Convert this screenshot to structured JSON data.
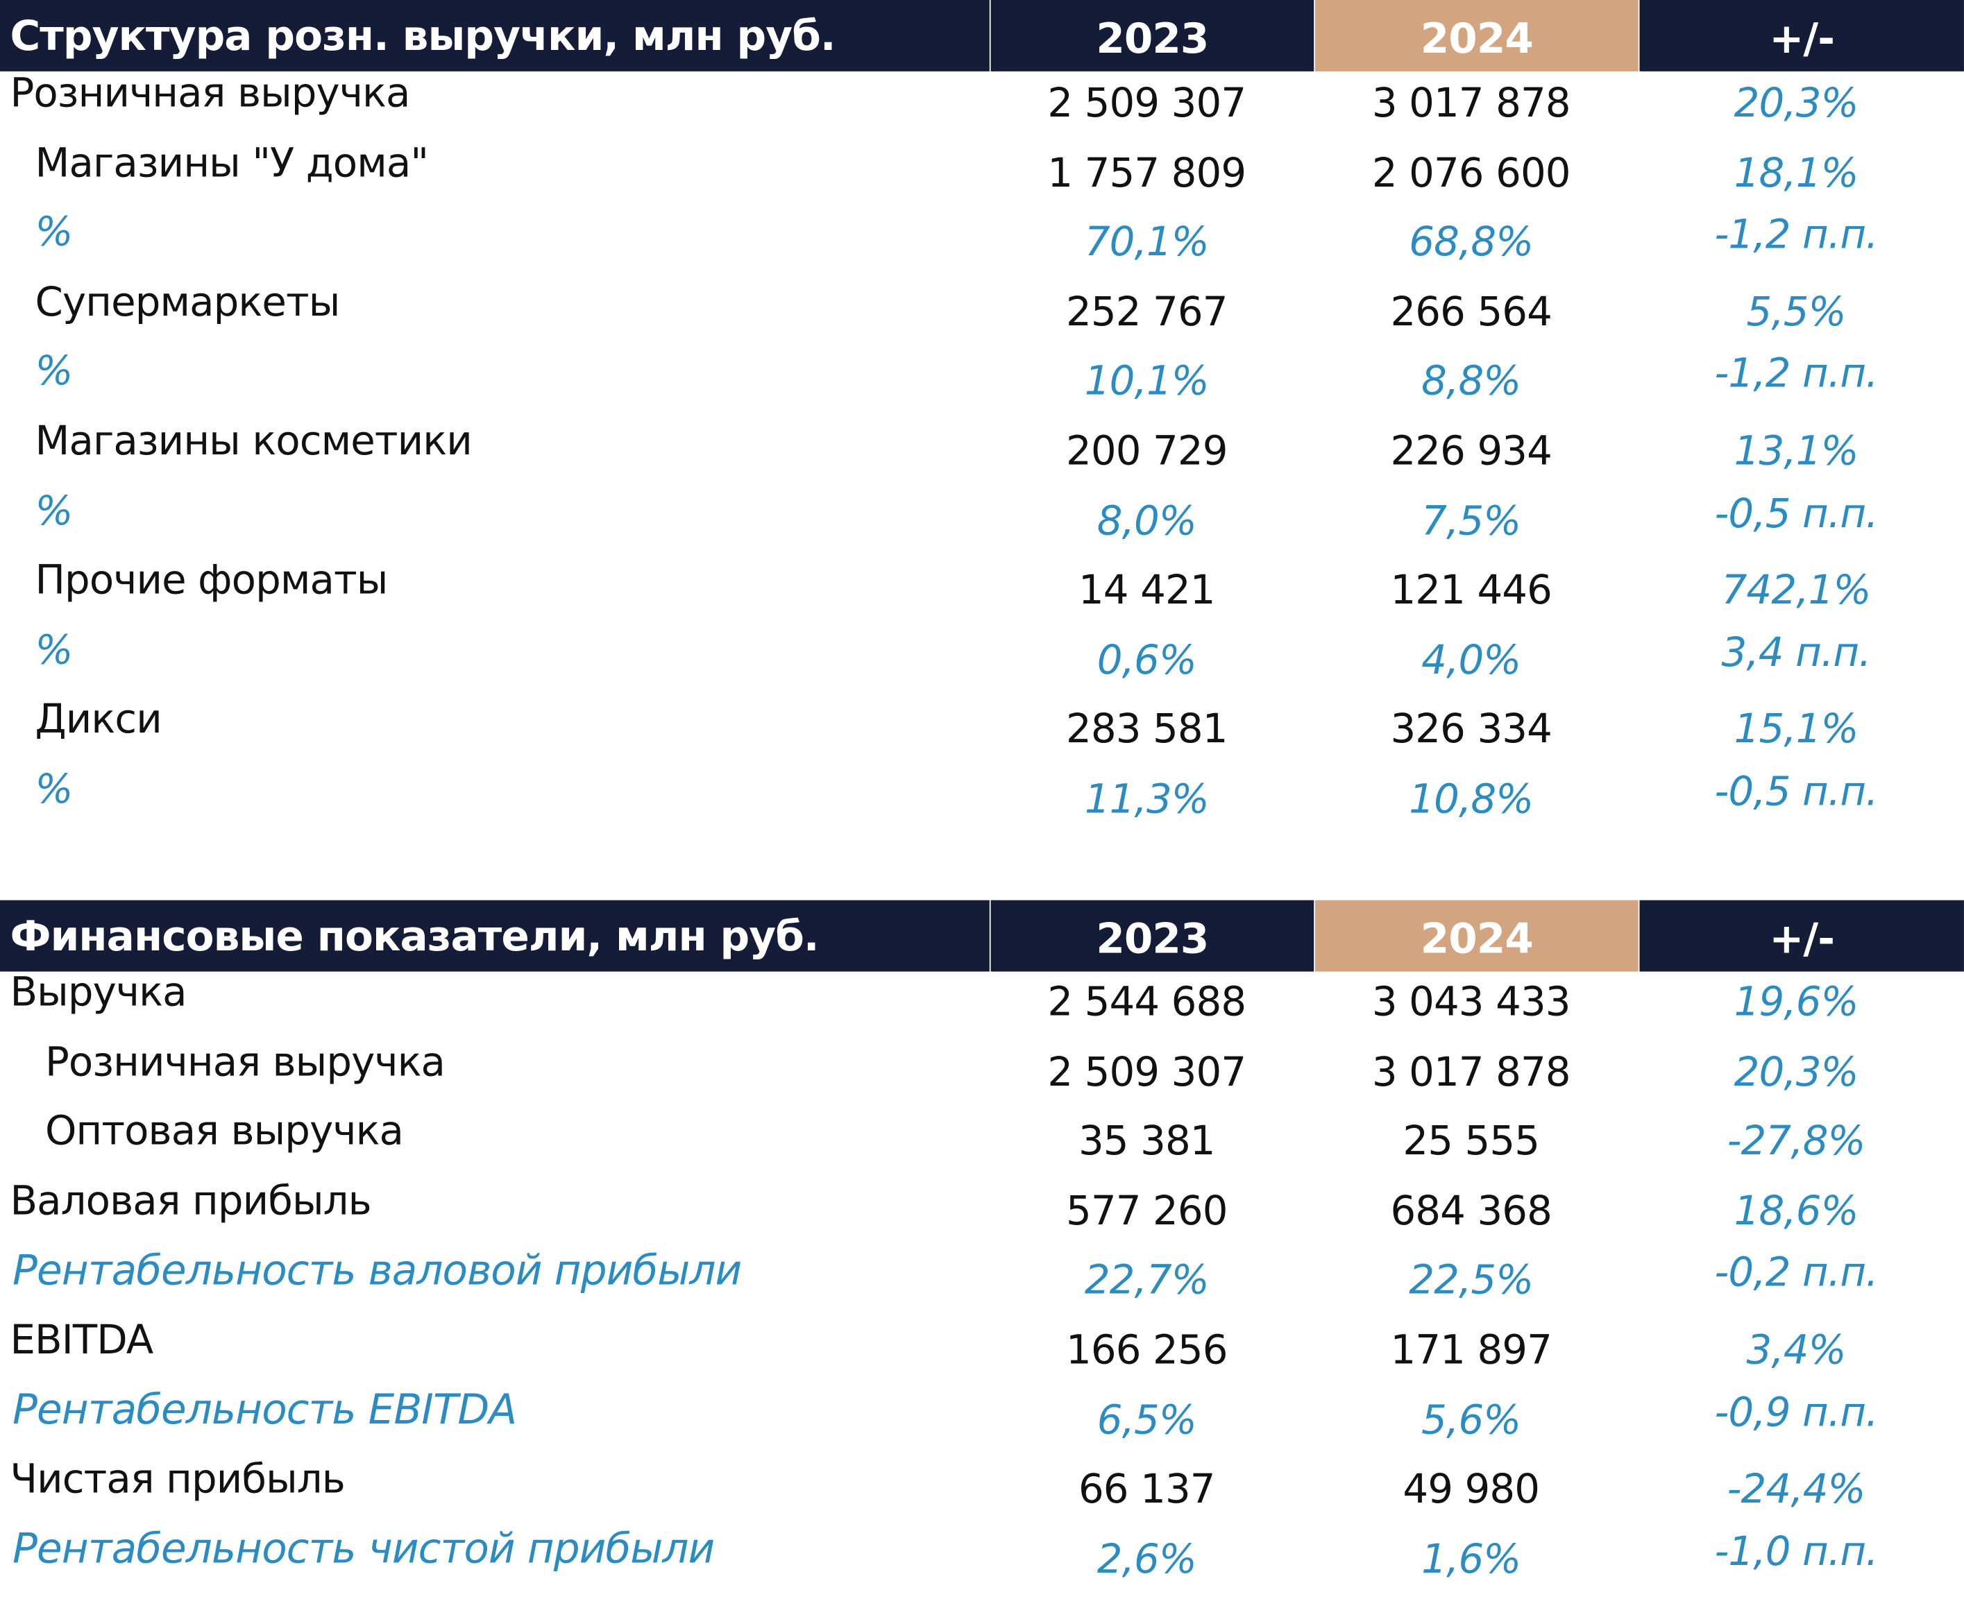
{
  "tables": [
    {
      "header": [
        "Структура розн. выручки, млн руб.",
        "2023",
        "2024",
        "+/-"
      ],
      "rows": [
        [
          "Розничная выручка",
          "2 509 307",
          "3 017 878",
          "20,3%"
        ],
        [
          "Магазины \"У дома\"",
          "1 757 809",
          "2 076 600",
          "18,1%"
        ],
        [
          "%",
          "70,1%",
          "68,8%",
          "-1,2 п.п."
        ],
        [
          "Супермаркеты",
          "252 767",
          "266 564",
          "5,5%"
        ],
        [
          "%",
          "10,1%",
          "8,8%",
          "-1,2 п.п."
        ],
        [
          "Магазины косметики",
          "200 729",
          "226 934",
          "13,1%"
        ],
        [
          "%",
          "8,0%",
          "7,5%",
          "-0,5 п.п."
        ],
        [
          "Прочие форматы",
          "14 421",
          "121 446",
          "742,1%"
        ],
        [
          "%",
          "0,6%",
          "4,0%",
          "3,4 п.п."
        ],
        [
          "Дикси",
          "283 581",
          "326 334",
          "15,1%"
        ],
        [
          "%",
          "11,3%",
          "10,8%",
          "-0,5 п.п."
        ]
      ]
    },
    {
      "header": [
        "Финансовые показатели, млн руб.",
        "2023",
        "2024",
        "+/-"
      ],
      "rows": [
        [
          "Выручка",
          "2 544 688",
          "3 043 433",
          "19,6%"
        ],
        [
          "Розничная выручка",
          "2 509 307",
          "3 017 878",
          "20,3%"
        ],
        [
          "Оптовая выручка",
          "35 381",
          "25 555",
          "-27,8%"
        ],
        [
          "Валовая прибыль",
          "577 260",
          "684 368",
          "18,6%"
        ],
        [
          "Рентабельность валовой прибыли",
          "22,7%",
          "22,5%",
          "-0,2 п.п."
        ],
        [
          "EBITDA",
          "166 256",
          "171 897",
          "3,4%"
        ],
        [
          "Рентабельность EBITDA",
          "6,5%",
          "5,6%",
          "-0,9 п.п."
        ],
        [
          "Чистая прибыль",
          "66 137",
          "49 980",
          "-24,4%"
        ],
        [
          "Рентабельность чистой прибыли",
          "2,6%",
          "1,6%",
          "-1,0 п.п."
        ]
      ]
    }
  ]
}
